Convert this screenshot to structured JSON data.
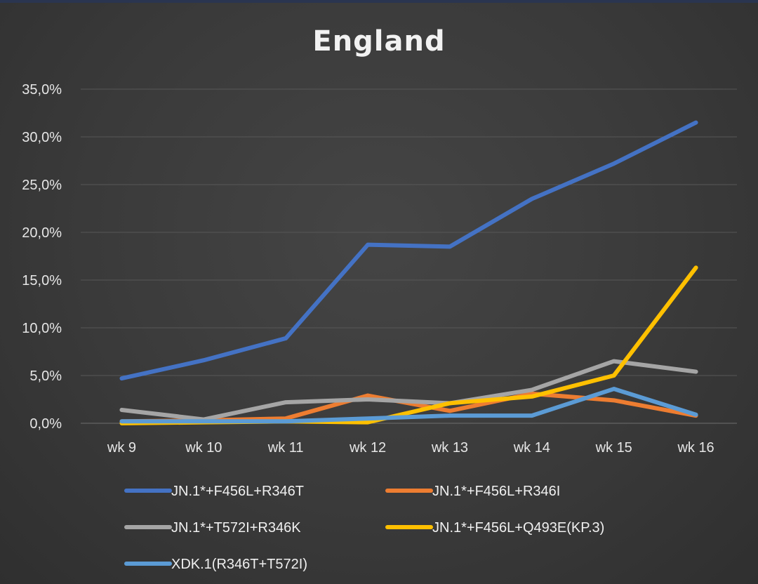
{
  "chart_data": {
    "type": "line",
    "title": "England",
    "categories": [
      "wk 9",
      "wk 10",
      "wk 11",
      "wk 12",
      "wk 13",
      "wk 14",
      "wk 15",
      "wk 16"
    ],
    "y_tick_labels": [
      "0,0%",
      "5,0%",
      "10,0%",
      "15,0%",
      "20,0%",
      "25,0%",
      "30,0%",
      "35,0%"
    ],
    "ylim": [
      0,
      35
    ],
    "grid": true,
    "legend_position": "bottom",
    "series": [
      {
        "name": "JN.1*+F456L+R346T",
        "color": "#4472c4",
        "values": [
          4.7,
          6.6,
          8.9,
          18.7,
          18.5,
          23.5,
          27.2,
          31.5
        ]
      },
      {
        "name": "JN.1*+F456L+R346I",
        "color": "#ed7d31",
        "values": [
          0.2,
          0.3,
          0.5,
          2.9,
          1.3,
          3.1,
          2.4,
          0.8
        ]
      },
      {
        "name": "JN.1*+T572I+R346K",
        "color": "#a5a5a5",
        "values": [
          1.4,
          0.4,
          2.2,
          2.5,
          2.1,
          3.5,
          6.5,
          5.4
        ]
      },
      {
        "name": "JN.1*+F456L+Q493E(KP.3)",
        "color": "#ffc000",
        "values": [
          0.0,
          0.1,
          0.2,
          0.1,
          2.1,
          2.8,
          5.0,
          16.3
        ]
      },
      {
        "name": "XDK.1(R346T+T572I)",
        "color": "#5b9bd5",
        "values": [
          0.2,
          0.2,
          0.2,
          0.5,
          0.8,
          0.8,
          3.6,
          0.9
        ]
      }
    ]
  }
}
